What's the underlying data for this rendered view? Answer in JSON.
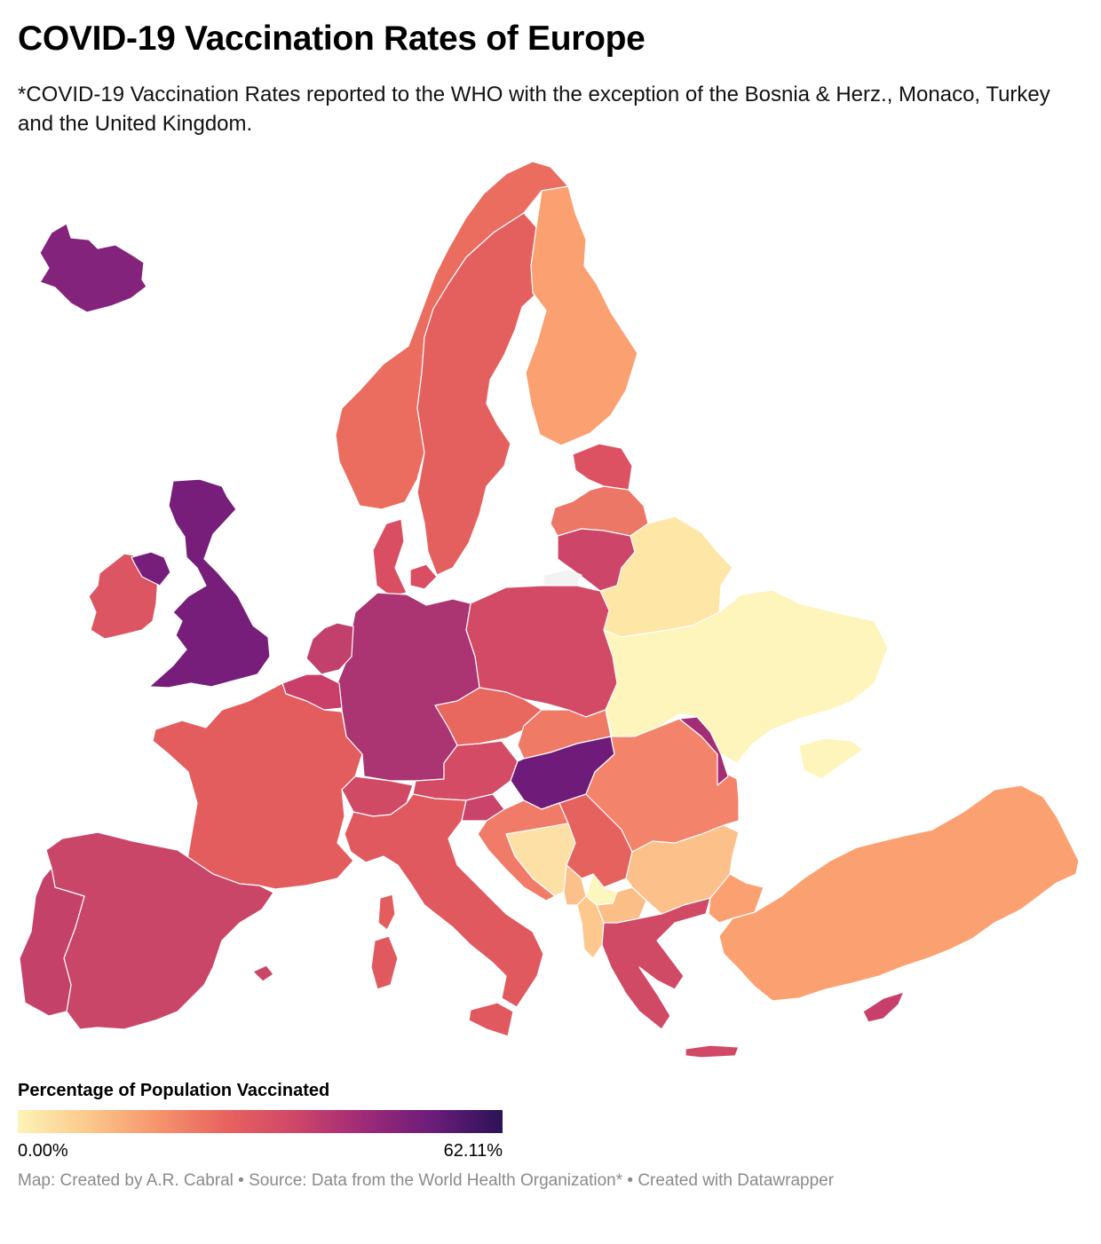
{
  "header": {
    "title": "COVID-19 Vaccination Rates of Europe",
    "subtitle": "*COVID-19 Vaccination Rates reported to the WHO with the exception of the Bosnia & Herz., Monaco, Turkey and the United Kingdom."
  },
  "legend": {
    "title": "Percentage of Population Vaccinated",
    "min_label": "0.00%",
    "max_label": "62.11%",
    "min_value": 0,
    "max_value": 62.11,
    "gradient_colors": [
      "#fdf3b8",
      "#fcc98c",
      "#f6956d",
      "#e8635f",
      "#cf4668",
      "#9e2a77",
      "#6a1c7a",
      "#2b1356"
    ]
  },
  "map_data": {
    "type": "choropleth",
    "countries": [
      {
        "name": "Iceland",
        "color": "#84237c"
      },
      {
        "name": "United Kingdom",
        "color": "#761e7a"
      },
      {
        "name": "Ireland",
        "color": "#db5563"
      },
      {
        "name": "Norway",
        "color": "#ea6d60"
      },
      {
        "name": "Sweden",
        "color": "#e4605f"
      },
      {
        "name": "Finland",
        "color": "#fba070"
      },
      {
        "name": "Estonia",
        "color": "#dc5263"
      },
      {
        "name": "Latvia",
        "color": "#ed7767"
      },
      {
        "name": "Lithuania",
        "color": "#cd4569"
      },
      {
        "name": "Denmark",
        "color": "#d94e63"
      },
      {
        "name": "Belarus",
        "color": "#fde6a6"
      },
      {
        "name": "Ukraine",
        "color": "#fdf5bc"
      },
      {
        "name": "Poland",
        "color": "#d24a66"
      },
      {
        "name": "Germany",
        "color": "#ab3473"
      },
      {
        "name": "Netherlands",
        "color": "#c2406c"
      },
      {
        "name": "Belgium",
        "color": "#c93f69"
      },
      {
        "name": "France",
        "color": "#e35d5f"
      },
      {
        "name": "Spain",
        "color": "#ca4669"
      },
      {
        "name": "Portugal",
        "color": "#c4426a"
      },
      {
        "name": "Switzerland",
        "color": "#d04a66"
      },
      {
        "name": "Austria",
        "color": "#d34b65"
      },
      {
        "name": "Czech Republic",
        "color": "#e8675f"
      },
      {
        "name": "Slovakia",
        "color": "#ef7a66"
      },
      {
        "name": "Hungary",
        "color": "#6f1b79"
      },
      {
        "name": "Italy",
        "color": "#e0595f"
      },
      {
        "name": "Slovenia",
        "color": "#c9436a"
      },
      {
        "name": "Croatia",
        "color": "#f17b69"
      },
      {
        "name": "Bosnia & Herz.",
        "color": "#fde0a5"
      },
      {
        "name": "Serbia",
        "color": "#e6625f"
      },
      {
        "name": "Montenegro",
        "color": "#fcc18a"
      },
      {
        "name": "Kosovo",
        "color": "#fdf6bd"
      },
      {
        "name": "Albania",
        "color": "#fdc88d"
      },
      {
        "name": "North Macedonia",
        "color": "#fbbe86"
      },
      {
        "name": "Greece",
        "color": "#d04a66"
      },
      {
        "name": "Bulgaria",
        "color": "#fcc08a"
      },
      {
        "name": "Romania",
        "color": "#f3836a"
      },
      {
        "name": "Moldova",
        "color": "#a32d74"
      },
      {
        "name": "Turkey",
        "color": "#fba171"
      },
      {
        "name": "Cyprus",
        "color": "#c6406b"
      },
      {
        "name": "Kaliningrad",
        "color": "#f3f3f3"
      }
    ]
  },
  "footer": {
    "credit": "Map: Created by A.R. Cabral • Source: Data from the World Health Organization* • Created with Datawrapper"
  }
}
